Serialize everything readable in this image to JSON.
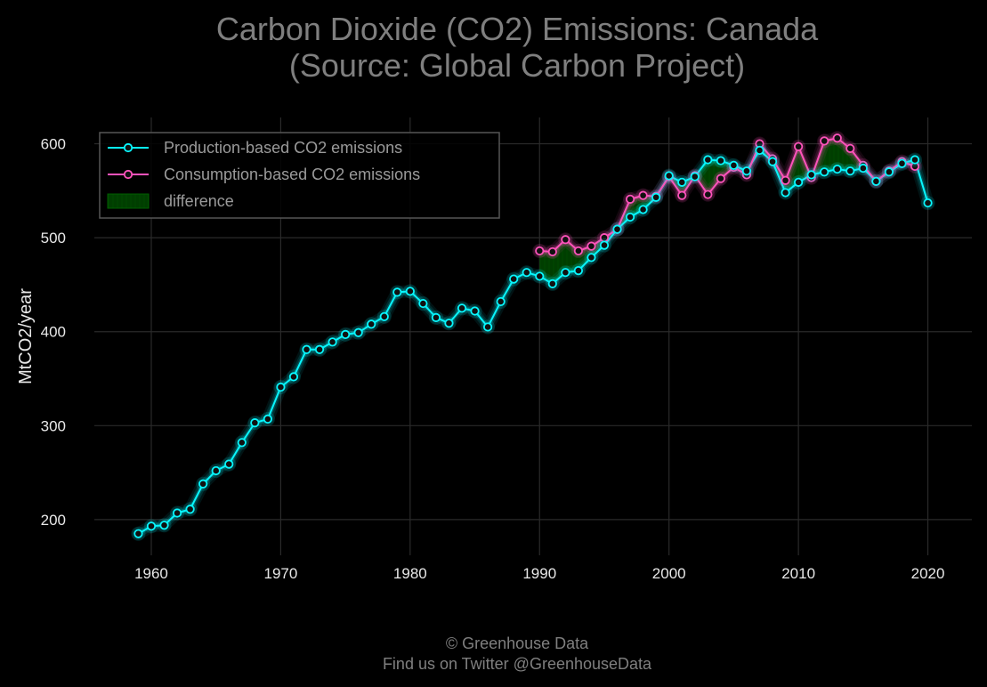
{
  "chart_data": {
    "type": "line",
    "title": "Carbon Dioxide (CO2) Emissions: Canada\n(Source: Global Carbon Project)",
    "xlabel": "",
    "ylabel": "MtCO2/year",
    "xlim": [
      1955.6,
      2023.4
    ],
    "ylim": [
      162,
      628
    ],
    "xticks": [
      1960,
      1970,
      1980,
      1990,
      2000,
      2010,
      2020
    ],
    "yticks": [
      200,
      300,
      400,
      500,
      600
    ],
    "grid": true,
    "legend_position": "top-left",
    "series": [
      {
        "name": "Production-based CO2 emissions",
        "color": "#08F7FE",
        "x": [
          1959,
          1960,
          1961,
          1962,
          1963,
          1964,
          1965,
          1966,
          1967,
          1968,
          1969,
          1970,
          1971,
          1972,
          1973,
          1974,
          1975,
          1976,
          1977,
          1978,
          1979,
          1980,
          1981,
          1982,
          1983,
          1984,
          1985,
          1986,
          1987,
          1988,
          1989,
          1990,
          1991,
          1992,
          1993,
          1994,
          1995,
          1996,
          1997,
          1998,
          1999,
          2000,
          2001,
          2002,
          2003,
          2004,
          2005,
          2006,
          2007,
          2008,
          2009,
          2010,
          2011,
          2012,
          2013,
          2014,
          2015,
          2016,
          2017,
          2018,
          2019,
          2020
        ],
        "values": [
          185,
          193,
          194,
          207,
          211,
          238,
          252,
          259,
          282,
          303,
          307,
          341,
          352,
          381,
          381,
          389,
          397,
          399,
          408,
          416,
          442,
          443,
          430,
          415,
          409,
          425,
          422,
          405,
          432,
          456,
          463,
          459,
          451,
          463,
          465,
          479,
          492,
          509,
          522,
          530,
          543,
          566,
          559,
          565,
          583,
          582,
          577,
          571,
          593,
          581,
          548,
          559,
          567,
          570,
          573,
          571,
          574,
          560,
          570,
          579,
          583,
          537
        ]
      },
      {
        "name": "Consumption-based CO2 emissions",
        "color": "#FE53BB",
        "x": [
          1990,
          1991,
          1992,
          1993,
          1994,
          1995,
          1996,
          1997,
          1998,
          1999,
          2000,
          2001,
          2002,
          2003,
          2004,
          2005,
          2006,
          2007,
          2008,
          2009,
          2010,
          2011,
          2012,
          2013,
          2014,
          2015,
          2016,
          2017,
          2018,
          2019
        ],
        "values": [
          486,
          485,
          498,
          486,
          491,
          500,
          509,
          541,
          545,
          544,
          565,
          545,
          566,
          546,
          563,
          575,
          567,
          600,
          584,
          561,
          597,
          564,
          603,
          606,
          595,
          577,
          560,
          571,
          581,
          576
        ]
      }
    ],
    "fill_label": "difference",
    "fill_color": "#00A000"
  },
  "footer": {
    "line1": "© Greenhouse Data",
    "line2": "Find us on Twitter @GreenhouseData"
  },
  "colors": {
    "background": "#000000",
    "grid": "#2A2A2A",
    "text": "#E8E8E8",
    "title": "#7F7F7F",
    "legend_border": "#555555"
  }
}
